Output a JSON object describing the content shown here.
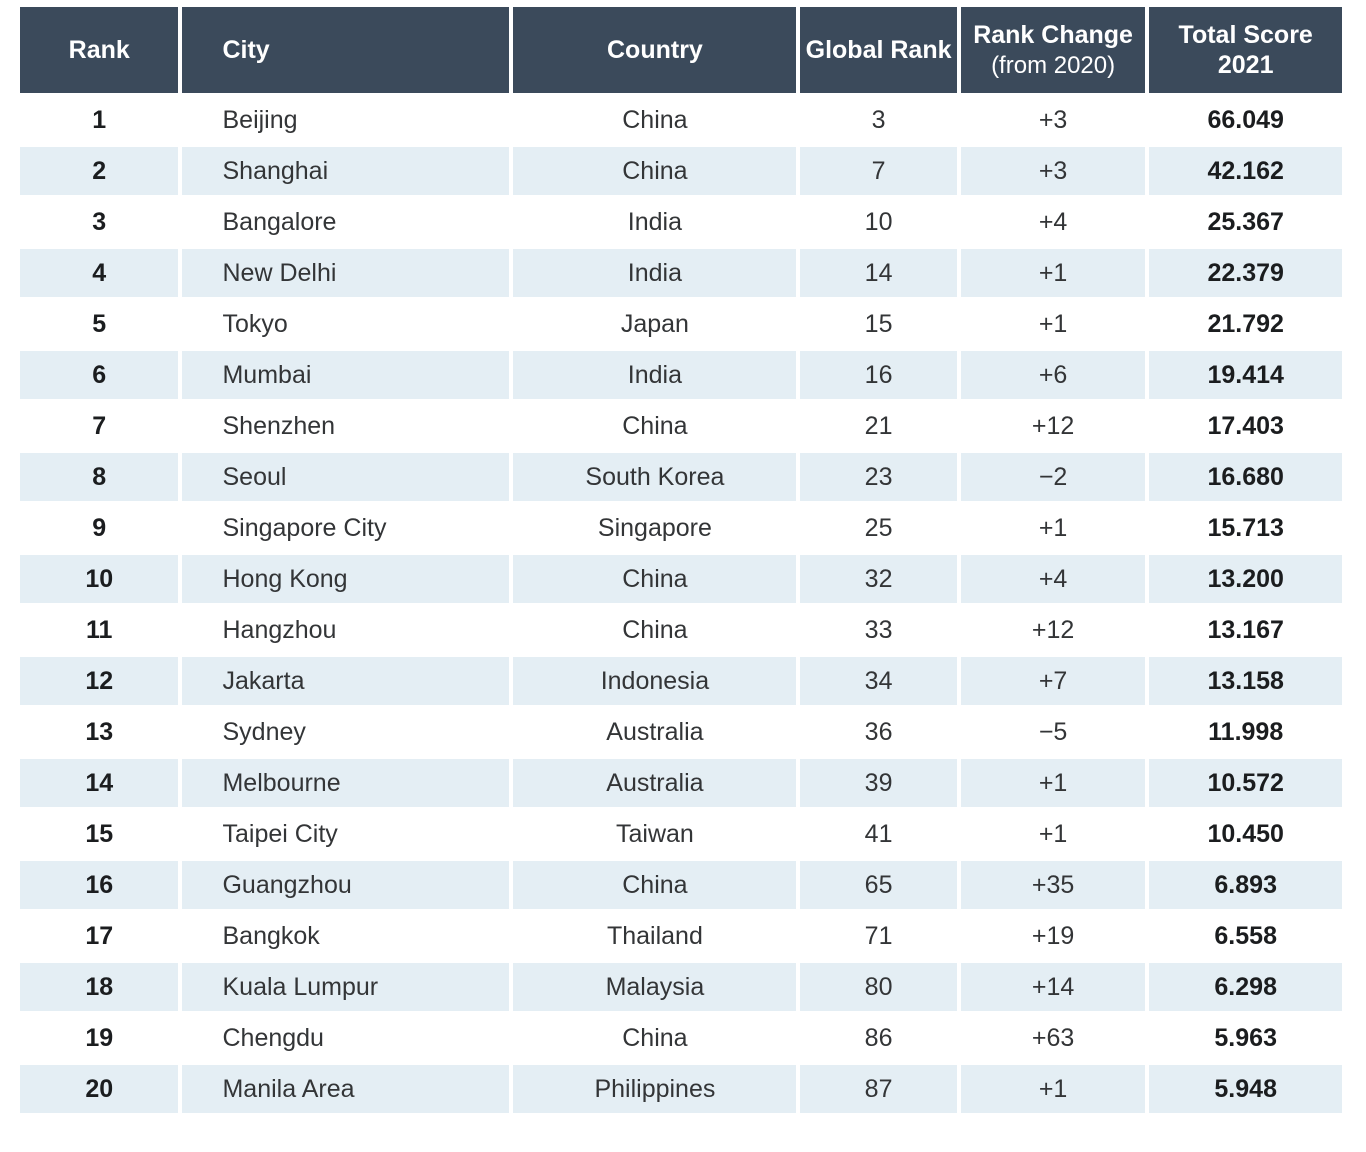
{
  "chart_data": {
    "type": "table",
    "columns": [
      {
        "key": "rank",
        "label": "Rank"
      },
      {
        "key": "city",
        "label": "City"
      },
      {
        "key": "country",
        "label": "Country"
      },
      {
        "key": "global_rank",
        "label": "Global Rank"
      },
      {
        "key": "rank_change",
        "label": "Rank Change",
        "sublabel": "(from 2020)"
      },
      {
        "key": "total_score",
        "label": "Total Score 2021"
      }
    ],
    "rows": [
      {
        "rank": "1",
        "city": "Beijing",
        "country": "China",
        "global_rank": "3",
        "rank_change": "+3",
        "total_score": "66.049"
      },
      {
        "rank": "2",
        "city": "Shanghai",
        "country": "China",
        "global_rank": "7",
        "rank_change": "+3",
        "total_score": "42.162"
      },
      {
        "rank": "3",
        "city": "Bangalore",
        "country": "India",
        "global_rank": "10",
        "rank_change": "+4",
        "total_score": "25.367"
      },
      {
        "rank": "4",
        "city": "New Delhi",
        "country": "India",
        "global_rank": "14",
        "rank_change": "+1",
        "total_score": "22.379"
      },
      {
        "rank": "5",
        "city": "Tokyo",
        "country": "Japan",
        "global_rank": "15",
        "rank_change": "+1",
        "total_score": "21.792"
      },
      {
        "rank": "6",
        "city": "Mumbai",
        "country": "India",
        "global_rank": "16",
        "rank_change": "+6",
        "total_score": "19.414"
      },
      {
        "rank": "7",
        "city": "Shenzhen",
        "country": "China",
        "global_rank": "21",
        "rank_change": "+12",
        "total_score": "17.403"
      },
      {
        "rank": "8",
        "city": "Seoul",
        "country": "South Korea",
        "global_rank": "23",
        "rank_change": "−2",
        "total_score": "16.680"
      },
      {
        "rank": "9",
        "city": "Singapore City",
        "country": "Singapore",
        "global_rank": "25",
        "rank_change": "+1",
        "total_score": "15.713"
      },
      {
        "rank": "10",
        "city": "Hong Kong",
        "country": "China",
        "global_rank": "32",
        "rank_change": "+4",
        "total_score": "13.200"
      },
      {
        "rank": "11",
        "city": "Hangzhou",
        "country": "China",
        "global_rank": "33",
        "rank_change": "+12",
        "total_score": "13.167"
      },
      {
        "rank": "12",
        "city": "Jakarta",
        "country": "Indonesia",
        "global_rank": "34",
        "rank_change": "+7",
        "total_score": "13.158"
      },
      {
        "rank": "13",
        "city": "Sydney",
        "country": "Australia",
        "global_rank": "36",
        "rank_change": "−5",
        "total_score": "11.998"
      },
      {
        "rank": "14",
        "city": "Melbourne",
        "country": "Australia",
        "global_rank": "39",
        "rank_change": "+1",
        "total_score": "10.572"
      },
      {
        "rank": "15",
        "city": "Taipei City",
        "country": "Taiwan",
        "global_rank": "41",
        "rank_change": "+1",
        "total_score": "10.450"
      },
      {
        "rank": "16",
        "city": "Guangzhou",
        "country": "China",
        "global_rank": "65",
        "rank_change": "+35",
        "total_score": "6.893"
      },
      {
        "rank": "17",
        "city": "Bangkok",
        "country": "Thailand",
        "global_rank": "71",
        "rank_change": "+19",
        "total_score": "6.558"
      },
      {
        "rank": "18",
        "city": "Kuala Lumpur",
        "country": "Malaysia",
        "global_rank": "80",
        "rank_change": "+14",
        "total_score": "6.298"
      },
      {
        "rank": "19",
        "city": "Chengdu",
        "country": "China",
        "global_rank": "86",
        "rank_change": "+63",
        "total_score": "5.963"
      },
      {
        "rank": "20",
        "city": "Manila Area",
        "country": "Philippines",
        "global_rank": "87",
        "rank_change": "+1",
        "total_score": "5.948"
      }
    ],
    "layout": {
      "zebra_striping": true,
      "first_row_background": "white",
      "legend": "none",
      "grid": "white column gutters between cells"
    },
    "colors": {
      "header_bg": "#3b4a5b",
      "header_text": "#ffffff",
      "stripe_bg": "#e4eef4",
      "row_bg": "#ffffff",
      "body_text": "#333537",
      "emphasis_text": "#1b1d1f"
    }
  }
}
